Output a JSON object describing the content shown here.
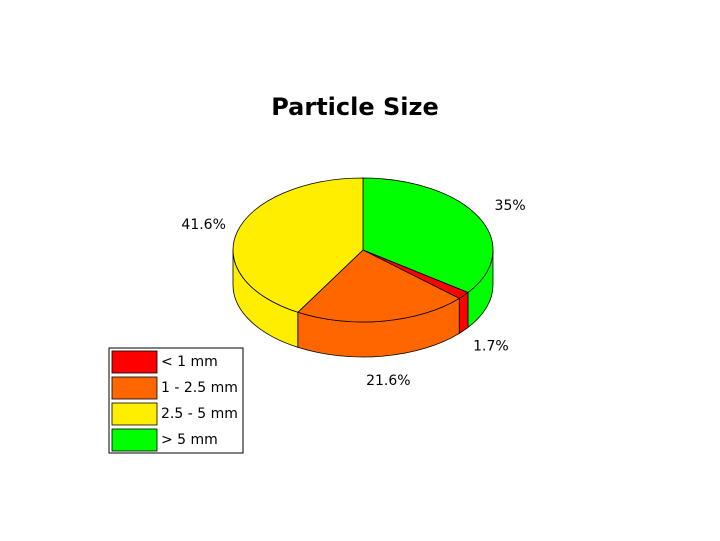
{
  "chart_data": {
    "type": "pie",
    "title": "Particle Size",
    "categories": [
      "< 1 mm",
      "1 - 2.5 mm",
      "2.5 - 5 mm",
      "> 5 mm"
    ],
    "values": [
      1.7,
      21.6,
      41.6,
      35
    ],
    "value_labels": [
      "1.7%",
      "21.6%",
      "41.6%",
      "35%"
    ],
    "colors": [
      "#ff0000",
      "#ff6600",
      "#ffee00",
      "#00ff00"
    ],
    "legend": "bottom-left"
  }
}
